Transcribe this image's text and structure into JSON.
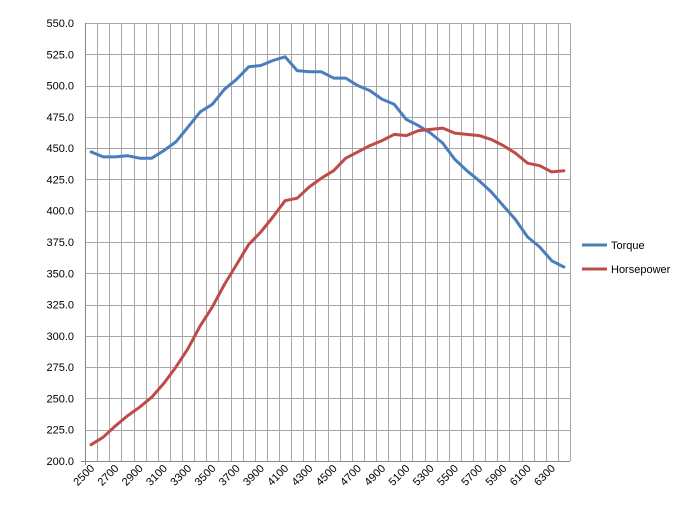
{
  "chart_data": {
    "type": "line",
    "x": [
      2500,
      2600,
      2700,
      2800,
      2900,
      3000,
      3100,
      3200,
      3300,
      3400,
      3500,
      3600,
      3700,
      3800,
      3900,
      4000,
      4100,
      4200,
      4300,
      4400,
      4500,
      4600,
      4700,
      4800,
      4900,
      5000,
      5100,
      5200,
      5300,
      5400,
      5500,
      5600,
      5700,
      5800,
      5900,
      6000,
      6100,
      6200,
      6300,
      6400
    ],
    "x_tick_labels": [
      "2500",
      "2700",
      "2900",
      "3100",
      "3300",
      "3500",
      "3700",
      "3900",
      "4100",
      "4300",
      "4500",
      "4700",
      "4900",
      "5100",
      "5300",
      "5500",
      "5700",
      "5900",
      "6100",
      "6300"
    ],
    "y_tick_labels": [
      "200.0",
      "225.0",
      "250.0",
      "275.0",
      "300.0",
      "325.0",
      "350.0",
      "375.0",
      "400.0",
      "425.0",
      "450.0",
      "475.0",
      "500.0",
      "525.0",
      "550.0"
    ],
    "ylim": [
      200,
      550
    ],
    "grid": true,
    "legend_position": "right",
    "series": [
      {
        "name": "Torque",
        "color": "#4a7ebb",
        "values": [
          447,
          443,
          443,
          444,
          442,
          442,
          448,
          455,
          467,
          479,
          485,
          497,
          505,
          515,
          516,
          520,
          523,
          512,
          511,
          511,
          506,
          506,
          500,
          496,
          489,
          485,
          473,
          468,
          462,
          454,
          441,
          432,
          424,
          415,
          404,
          393,
          379,
          371,
          360,
          355
        ]
      },
      {
        "name": "Horsepower",
        "color": "#be4b48",
        "values": [
          213,
          219,
          228,
          236,
          243,
          251,
          262,
          275,
          290,
          308,
          323,
          341,
          357,
          373,
          383,
          395,
          408,
          410,
          419,
          426,
          432,
          442,
          447,
          452,
          456,
          461,
          460,
          464,
          465,
          466,
          462,
          461,
          460,
          457,
          452,
          446,
          438,
          436,
          431,
          432
        ]
      }
    ]
  }
}
